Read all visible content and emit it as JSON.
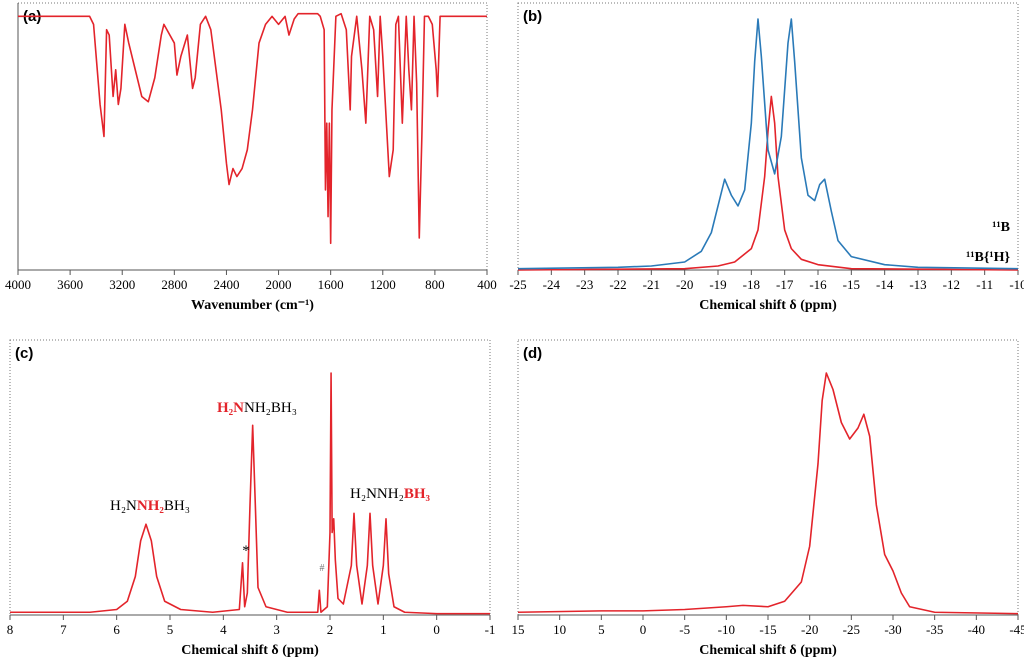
{
  "chart_data": [
    {
      "type": "line",
      "label": "(a)",
      "xlabel": "Wavenumber (cm⁻¹)",
      "xlim": [
        4000,
        400
      ],
      "xticks": [
        4000,
        3600,
        3200,
        2800,
        2400,
        2000,
        1600,
        1200,
        800,
        400
      ],
      "ylim": [
        0,
        100
      ],
      "series": [
        {
          "color": "#e3242b",
          "x": [
            4000,
            3700,
            3450,
            3420,
            3400,
            3370,
            3340,
            3320,
            3300,
            3270,
            3250,
            3230,
            3210,
            3180,
            3150,
            3100,
            3050,
            3000,
            2950,
            2900,
            2880,
            2800,
            2780,
            2750,
            2700,
            2660,
            2640,
            2600,
            2560,
            2520,
            2480,
            2440,
            2400,
            2380,
            2350,
            2320,
            2280,
            2240,
            2200,
            2150,
            2100,
            2050,
            2000,
            1950,
            1920,
            1880,
            1850,
            1700,
            1680,
            1650,
            1640,
            1630,
            1620,
            1610,
            1600,
            1590,
            1560,
            1520,
            1480,
            1450,
            1440,
            1400,
            1360,
            1330,
            1300,
            1270,
            1240,
            1220,
            1200,
            1150,
            1120,
            1100,
            1080,
            1050,
            1020,
            1000,
            980,
            960,
            940,
            920,
            900,
            880,
            850,
            820,
            790,
            780,
            760,
            700,
            400
          ],
          "values": [
            95,
            95,
            95,
            92,
            80,
            62,
            50,
            90,
            88,
            65,
            75,
            62,
            68,
            92,
            85,
            75,
            65,
            63,
            72,
            88,
            92,
            85,
            73,
            80,
            88,
            68,
            72,
            92,
            95,
            90,
            75,
            60,
            40,
            32,
            38,
            35,
            38,
            45,
            60,
            85,
            92,
            95,
            92,
            95,
            88,
            94,
            96,
            96,
            95,
            90,
            30,
            55,
            20,
            55,
            10,
            60,
            95,
            96,
            90,
            60,
            80,
            95,
            75,
            55,
            95,
            90,
            65,
            95,
            80,
            35,
            45,
            92,
            95,
            55,
            95,
            75,
            60,
            95,
            70,
            12,
            50,
            95,
            95,
            92,
            75,
            65,
            95,
            95,
            95
          ]
        }
      ]
    },
    {
      "type": "line",
      "label": "(b)",
      "xlabel": "Chemical shift δ (ppm)",
      "xlim": [
        -25,
        -10
      ],
      "xticks": [
        -25,
        -24,
        -23,
        -22,
        -21,
        -20,
        -19,
        -18,
        -17,
        -16,
        -15,
        -14,
        -13,
        -12,
        -11,
        -10
      ],
      "ylim": [
        0,
        100
      ],
      "series": [
        {
          "name": "¹¹B",
          "color": "#e3242b",
          "x": [
            -25,
            -20,
            -19,
            -18.5,
            -18,
            -17.8,
            -17.6,
            -17.5,
            -17.4,
            -17.3,
            -17.2,
            -17,
            -16.8,
            -16.5,
            -16,
            -15,
            -10
          ],
          "values": [
            0,
            0.5,
            1.5,
            3,
            8,
            15,
            35,
            52,
            65,
            55,
            35,
            15,
            8,
            4,
            2,
            0.5,
            0
          ]
        },
        {
          "name": "¹¹B{¹H}",
          "color": "#2a7ab8",
          "x": [
            -25,
            -22,
            -21,
            -20,
            -19.5,
            -19.2,
            -19,
            -18.8,
            -18.6,
            -18.4,
            -18.2,
            -18,
            -17.9,
            -17.8,
            -17.7,
            -17.5,
            -17.3,
            -17.1,
            -16.9,
            -16.8,
            -16.7,
            -16.5,
            -16.3,
            -16.1,
            -15.95,
            -15.8,
            -15.6,
            -15.4,
            -15,
            -14,
            -13,
            -10
          ],
          "values": [
            0.5,
            1,
            1.5,
            3,
            7,
            14,
            24,
            34,
            28,
            24,
            30,
            55,
            78,
            94,
            80,
            45,
            36,
            50,
            85,
            94,
            78,
            42,
            28,
            26,
            32,
            34,
            22,
            11,
            5,
            2,
            1,
            0.5
          ]
        }
      ]
    },
    {
      "type": "line",
      "label": "(c)",
      "xlabel": "Chemical shift δ (ppm)",
      "xlim": [
        8,
        -1
      ],
      "xticks": [
        8,
        7,
        6,
        5,
        4,
        3,
        2,
        1,
        0,
        -1
      ],
      "ylim": [
        0,
        100
      ],
      "annotations": [
        {
          "parts": [
            {
              "text": "H₂N"
            },
            {
              "text": "NH₂",
              "highlight": true
            },
            {
              "text": "BH₃"
            }
          ]
        },
        {
          "parts": [
            {
              "text": "H₂N",
              "highlight": true
            },
            {
              "text": "NH₂BH₃"
            }
          ]
        },
        {
          "parts": [
            {
              "text": "H₂NNH₂"
            },
            {
              "text": "BH₃",
              "highlight": true
            }
          ]
        },
        {
          "parts": [
            {
              "text": "*"
            }
          ]
        },
        {
          "parts": [
            {
              "text": "#"
            }
          ]
        }
      ],
      "series": [
        {
          "color": "#e3242b",
          "x": [
            8,
            6.5,
            6,
            5.8,
            5.65,
            5.55,
            5.45,
            5.35,
            5.25,
            5.1,
            4.8,
            4.2,
            3.7,
            3.64,
            3.6,
            3.55,
            3.5,
            3.45,
            3.4,
            3.35,
            3.2,
            2.8,
            2.23,
            2.2,
            2.17,
            2.05,
            2.0,
            1.98,
            1.96,
            1.93,
            1.9,
            1.85,
            1.75,
            1.6,
            1.55,
            1.5,
            1.4,
            1.3,
            1.25,
            1.2,
            1.1,
            1.0,
            0.95,
            0.9,
            0.8,
            0.6,
            0,
            -1
          ],
          "values": [
            1,
            1,
            2,
            5,
            14,
            27,
            33,
            27,
            14,
            5,
            2,
            1,
            2,
            19,
            3,
            8,
            40,
            69,
            40,
            10,
            3,
            1,
            1,
            9,
            1,
            3,
            30,
            88,
            30,
            35,
            20,
            6,
            4,
            18,
            37,
            18,
            4,
            18,
            37,
            18,
            4,
            18,
            35,
            15,
            3,
            1,
            0.5,
            0.5
          ]
        }
      ]
    },
    {
      "type": "line",
      "label": "(d)",
      "xlabel": "Chemical shift δ (ppm)",
      "xlim": [
        15,
        -45
      ],
      "xticks": [
        15,
        10,
        5,
        0,
        -5,
        -10,
        -15,
        -20,
        -25,
        -30,
        -35,
        -40,
        -45
      ],
      "ylim": [
        0,
        100
      ],
      "series": [
        {
          "color": "#e3242b",
          "x": [
            15,
            5,
            0,
            -5,
            -10,
            -12,
            -15,
            -17,
            -19,
            -20,
            -21,
            -21.5,
            -22,
            -22.8,
            -23.8,
            -24.8,
            -25.8,
            -26.5,
            -27.2,
            -28,
            -29,
            -30,
            -31,
            -32,
            -35,
            -45
          ],
          "values": [
            1,
            1.5,
            1.5,
            2,
            3,
            3.5,
            3,
            5,
            12,
            25,
            55,
            78,
            88,
            82,
            70,
            64,
            68,
            73,
            65,
            40,
            22,
            16,
            8,
            3,
            1,
            0.5
          ]
        }
      ]
    }
  ]
}
